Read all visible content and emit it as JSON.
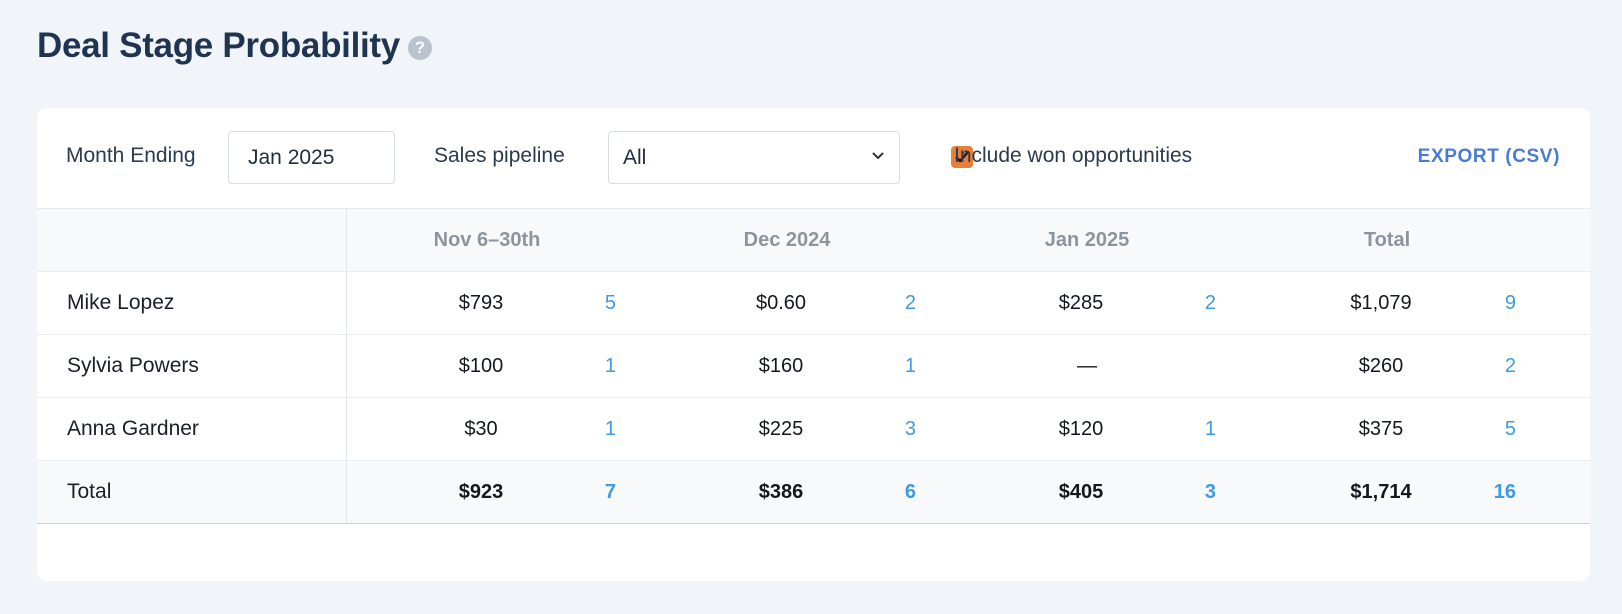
{
  "page": {
    "title": "Deal Stage Probability",
    "help_icon": "question-circle-icon"
  },
  "filters": {
    "month_label": "Month Ending",
    "month_value": "Jan 2025",
    "pipeline_label": "Sales pipeline",
    "pipeline_value": "All",
    "include_won_label": "Include won opportunities",
    "include_won_checked": true,
    "export_label": "EXPORT (CSV)"
  },
  "table": {
    "columns": [
      "Nov 6–30th",
      "Dec 2024",
      "Jan 2025",
      "Total"
    ],
    "rows": [
      {
        "name": "Mike Lopez",
        "cells": [
          {
            "amount": "$793",
            "count": "5"
          },
          {
            "amount": "$0.60",
            "count": "2"
          },
          {
            "amount": "$285",
            "count": "2"
          },
          {
            "amount": "$1,079",
            "count": "9"
          }
        ]
      },
      {
        "name": "Sylvia Powers",
        "cells": [
          {
            "amount": "$100",
            "count": "1"
          },
          {
            "amount": "$160",
            "count": "1"
          },
          {
            "amount": "—",
            "count": ""
          },
          {
            "amount": "$260",
            "count": "2"
          }
        ]
      },
      {
        "name": "Anna Gardner",
        "cells": [
          {
            "amount": "$30",
            "count": "1"
          },
          {
            "amount": "$225",
            "count": "3"
          },
          {
            "amount": "$120",
            "count": "1"
          },
          {
            "amount": "$375",
            "count": "5"
          }
        ]
      }
    ],
    "total": {
      "name": "Total",
      "cells": [
        {
          "amount": "$923",
          "count": "7"
        },
        {
          "amount": "$386",
          "count": "6"
        },
        {
          "amount": "$405",
          "count": "3"
        },
        {
          "amount": "$1,714",
          "count": "16"
        }
      ]
    }
  },
  "colors": {
    "accent_checkbox": "#e8803a",
    "count_text": "#3d9be0",
    "export_link": "#4a7bd4",
    "title": "#1f3450"
  }
}
